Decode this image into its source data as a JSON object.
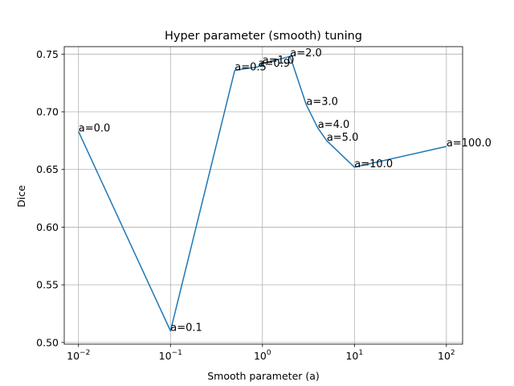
{
  "chart_data": {
    "type": "line",
    "title": "Hyper parameter (smooth) tuning",
    "xlabel": "Smooth parameter (a)",
    "ylabel": "Dice",
    "xscale": "log",
    "xlim": [
      0.007,
      150
    ],
    "ylim": [
      0.4985,
      0.7565
    ],
    "grid": true,
    "x": [
      0.01,
      0.1,
      0.5,
      0.9,
      1.0,
      2.0,
      3.0,
      4.0,
      5.0,
      10.0,
      100.0
    ],
    "series": [
      {
        "color": "#1f77b4",
        "values": [
          0.683,
          0.51,
          0.736,
          0.739,
          0.742,
          0.748,
          0.706,
          0.686,
          0.675,
          0.652,
          0.67
        ]
      }
    ],
    "annotations": [
      "a=0.0",
      "a=0.1",
      "a=0.5",
      "a=0.9",
      "a=1.0",
      "a=2.0",
      "a=3.0",
      "a=4.0",
      "a=5.0",
      "a=10.0",
      "a=100.0"
    ],
    "x_ticks": [
      {
        "base": "10",
        "exp": "−2",
        "value": 0.01
      },
      {
        "base": "10",
        "exp": "−1",
        "value": 0.1
      },
      {
        "base": "10",
        "exp": "0",
        "value": 1
      },
      {
        "base": "10",
        "exp": "1",
        "value": 10
      },
      {
        "base": "10",
        "exp": "2",
        "value": 100
      }
    ],
    "y_ticks": [
      {
        "label": "0.50",
        "value": 0.5
      },
      {
        "label": "0.55",
        "value": 0.55
      },
      {
        "label": "0.60",
        "value": 0.6
      },
      {
        "label": "0.65",
        "value": 0.65
      },
      {
        "label": "0.70",
        "value": 0.7
      },
      {
        "label": "0.75",
        "value": 0.75
      }
    ]
  }
}
